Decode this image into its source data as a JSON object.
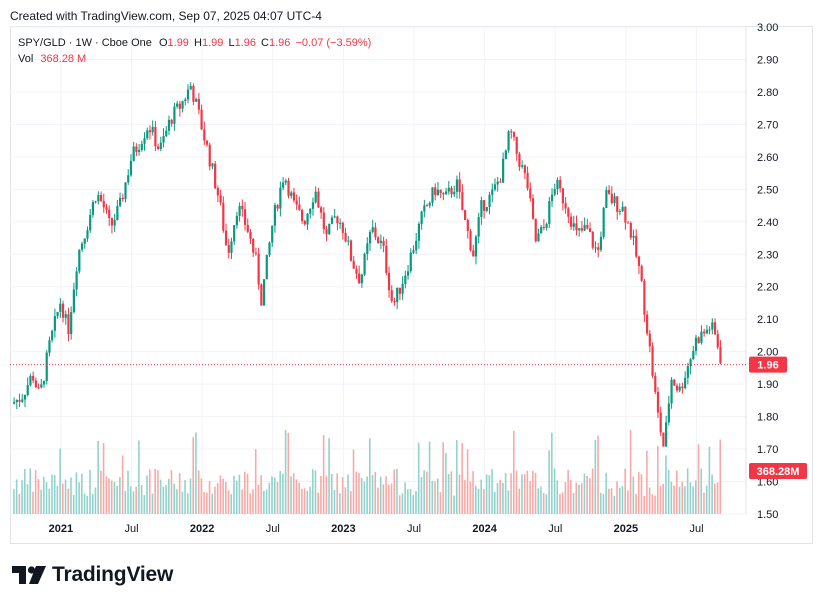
{
  "header": {
    "created_text": "Created with TradingView.com, Sep 07, 2025 04:07 UTC-4"
  },
  "legend": {
    "symbol": "SPY/GLD · 1W · Cboe One",
    "open_label": "O",
    "open": "1.99",
    "high_label": "H",
    "high": "1.99",
    "low_label": "L",
    "low": "1.96",
    "close_label": "C",
    "close": "1.96",
    "change": "−0.07 (−3.59%)",
    "vol_label": "Vol",
    "vol_value": "368.28 M"
  },
  "brand": {
    "name": "TradingView",
    "logo_icon": "tradingview-logo-icon"
  },
  "colors": {
    "up": "#089981",
    "down": "#f23645",
    "up_vol": "#92d2cc",
    "down_vol": "#f7a9a7",
    "grid": "#f0f3fa"
  },
  "chart_data": {
    "type": "candlestick",
    "title": "SPY/GLD · 1W · Cboe One",
    "ylim": [
      1.5,
      3.0
    ],
    "y_ticks": [
      "3.00",
      "2.90",
      "2.80",
      "2.70",
      "2.60",
      "2.50",
      "2.40",
      "2.30",
      "2.20",
      "2.10",
      "2.00",
      "1.90",
      "1.80",
      "1.70",
      "1.60",
      "1.50"
    ],
    "x_ticks": [
      {
        "label": "2021",
        "t": 2021.0,
        "major": true
      },
      {
        "label": "Jul",
        "t": 2021.5,
        "major": false
      },
      {
        "label": "2022",
        "t": 2022.0,
        "major": true
      },
      {
        "label": "Jul",
        "t": 2022.5,
        "major": false
      },
      {
        "label": "2023",
        "t": 2023.0,
        "major": true
      },
      {
        "label": "Jul",
        "t": 2023.5,
        "major": false
      },
      {
        "label": "2024",
        "t": 2024.0,
        "major": true
      },
      {
        "label": "Jul",
        "t": 2024.5,
        "major": false
      },
      {
        "label": "2025",
        "t": 2025.0,
        "major": true
      },
      {
        "label": "Jul",
        "t": 2025.5,
        "major": false
      }
    ],
    "x_range": [
      2020.64,
      2025.85
    ],
    "close_path": [
      [
        2020.65,
        1.84
      ],
      [
        2020.72,
        1.86
      ],
      [
        2020.8,
        1.93
      ],
      [
        2020.85,
        1.86
      ],
      [
        2020.92,
        2.02
      ],
      [
        2021.0,
        2.16
      ],
      [
        2021.05,
        2.06
      ],
      [
        2021.12,
        2.3
      ],
      [
        2021.18,
        2.38
      ],
      [
        2021.25,
        2.49
      ],
      [
        2021.3,
        2.45
      ],
      [
        2021.35,
        2.38
      ],
      [
        2021.42,
        2.45
      ],
      [
        2021.5,
        2.6
      ],
      [
        2021.55,
        2.64
      ],
      [
        2021.62,
        2.7
      ],
      [
        2021.7,
        2.62
      ],
      [
        2021.78,
        2.72
      ],
      [
        2021.85,
        2.76
      ],
      [
        2021.92,
        2.82
      ],
      [
        2021.97,
        2.74
      ],
      [
        2022.05,
        2.6
      ],
      [
        2022.12,
        2.47
      ],
      [
        2022.18,
        2.3
      ],
      [
        2022.25,
        2.45
      ],
      [
        2022.32,
        2.38
      ],
      [
        2022.38,
        2.28
      ],
      [
        2022.42,
        2.16
      ],
      [
        2022.5,
        2.4
      ],
      [
        2022.58,
        2.55
      ],
      [
        2022.65,
        2.45
      ],
      [
        2022.72,
        2.4
      ],
      [
        2022.8,
        2.5
      ],
      [
        2022.88,
        2.35
      ],
      [
        2022.95,
        2.42
      ],
      [
        2023.0,
        2.38
      ],
      [
        2023.06,
        2.28
      ],
      [
        2023.12,
        2.22
      ],
      [
        2023.2,
        2.38
      ],
      [
        2023.28,
        2.32
      ],
      [
        2023.35,
        2.14
      ],
      [
        2023.42,
        2.22
      ],
      [
        2023.48,
        2.3
      ],
      [
        2023.56,
        2.42
      ],
      [
        2023.65,
        2.5
      ],
      [
        2023.72,
        2.47
      ],
      [
        2023.8,
        2.52
      ],
      [
        2023.86,
        2.4
      ],
      [
        2023.92,
        2.3
      ],
      [
        2023.98,
        2.45
      ],
      [
        2024.05,
        2.48
      ],
      [
        2024.12,
        2.55
      ],
      [
        2024.18,
        2.68
      ],
      [
        2024.22,
        2.62
      ],
      [
        2024.3,
        2.52
      ],
      [
        2024.36,
        2.34
      ],
      [
        2024.42,
        2.38
      ],
      [
        2024.5,
        2.52
      ],
      [
        2024.58,
        2.45
      ],
      [
        2024.65,
        2.36
      ],
      [
        2024.72,
        2.38
      ],
      [
        2024.8,
        2.3
      ],
      [
        2024.86,
        2.48
      ],
      [
        2024.92,
        2.46
      ],
      [
        2024.98,
        2.44
      ],
      [
        2025.04,
        2.36
      ],
      [
        2025.1,
        2.24
      ],
      [
        2025.16,
        2.04
      ],
      [
        2025.22,
        1.82
      ],
      [
        2025.27,
        1.7
      ],
      [
        2025.32,
        1.92
      ],
      [
        2025.38,
        1.88
      ],
      [
        2025.44,
        1.96
      ],
      [
        2025.5,
        2.04
      ],
      [
        2025.56,
        2.06
      ],
      [
        2025.6,
        2.08
      ],
      [
        2025.64,
        2.04
      ],
      [
        2025.68,
        1.96
      ]
    ],
    "last_price": 1.96,
    "last_price_label": "1.96",
    "volume_label": "368.28M"
  }
}
